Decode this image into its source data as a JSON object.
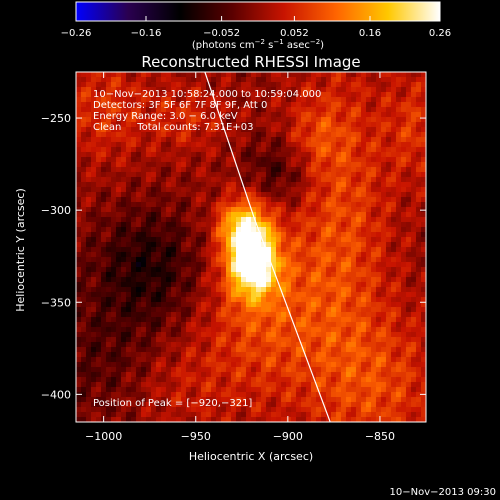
{
  "chart_data": {
    "type": "heatmap",
    "title": "Reconstructed RHESSI Image",
    "xlabel": "Heliocentric X (arcsec)",
    "ylabel": "Heliocentric Y (arcsec)",
    "xlim": [
      -1015,
      -825
    ],
    "ylim": [
      -415,
      -225
    ],
    "x_ticks": [
      {
        "value": -1000,
        "label": "−1000"
      },
      {
        "value": -950,
        "label": "−950"
      },
      {
        "value": -900,
        "label": "−900"
      },
      {
        "value": -850,
        "label": "−850"
      }
    ],
    "y_ticks": [
      {
        "value": -250,
        "label": "−250"
      },
      {
        "value": -300,
        "label": "−300"
      },
      {
        "value": -350,
        "label": "−350"
      },
      {
        "value": -400,
        "label": "−400"
      }
    ],
    "colorbar": {
      "min": -0.26,
      "max": 0.26,
      "ticks": [
        {
          "value": -0.26,
          "label": "−0.26"
        },
        {
          "value": -0.16,
          "label": "−0.16"
        },
        {
          "value": -0.052,
          "label": "−0.052"
        },
        {
          "value": 0.052,
          "label": "0.052"
        },
        {
          "value": 0.16,
          "label": "0.16"
        },
        {
          "value": 0.26,
          "label": "0.26"
        }
      ],
      "units_text": "(photons cm",
      "units_exp1": "−2",
      "units_mid": " s",
      "units_exp2": "−1",
      "units_end": " asec",
      "units_exp3": "−2",
      "units_close": ")",
      "colors": [
        "#0000ff",
        "#2a0050",
        "#000000",
        "#5a0000",
        "#c81400",
        "#ff6400",
        "#ffc800",
        "#ffffff"
      ]
    },
    "info_lines": [
      "10−Nov−2013 10:58:24.000 to 10:59:04.000",
      "Detectors: 3F 5F 6F 7F 8F 9F, Att 0",
      "Energy Range: 3.0 − 6.0 keV",
      "Clean     Total counts: 7.31E+03"
    ],
    "peak_label": "Position of Peak = [−920,−321]",
    "peak": {
      "x": -920,
      "y": -321,
      "value": 0.26
    },
    "limb_line": [
      {
        "x": -945,
        "y": -225
      },
      {
        "x": -918,
        "y": -305
      },
      {
        "x": -877,
        "y": -415
      }
    ],
    "sources": [
      {
        "x": -921,
        "y": -320,
        "sx": 9,
        "sy": 16,
        "amp": 0.27
      },
      {
        "x": -915,
        "y": -332,
        "sx": 8,
        "sy": 10,
        "amp": 0.1
      },
      {
        "x": -930,
        "y": -307,
        "sx": 7,
        "sy": 7,
        "amp": 0.06
      },
      {
        "x": -912,
        "y": -355,
        "sx": 25,
        "sy": 35,
        "amp": 0.085
      },
      {
        "x": -870,
        "y": -305,
        "sx": 18,
        "sy": 60,
        "amp": 0.075
      },
      {
        "x": -850,
        "y": -395,
        "sx": 25,
        "sy": 28,
        "amp": 0.07
      },
      {
        "x": -1000,
        "y": -245,
        "sx": 18,
        "sy": 20,
        "amp": 0.06
      },
      {
        "x": -955,
        "y": -250,
        "sx": 14,
        "sy": 12,
        "amp": 0.05
      },
      {
        "x": -885,
        "y": -260,
        "sx": 12,
        "sy": 14,
        "amp": 0.05
      },
      {
        "x": -975,
        "y": -330,
        "sx": 22,
        "sy": 22,
        "amp": -0.085
      },
      {
        "x": -905,
        "y": -280,
        "sx": 14,
        "sy": 14,
        "amp": -0.07
      },
      {
        "x": -1000,
        "y": -380,
        "sx": 25,
        "sy": 25,
        "amp": -0.045
      },
      {
        "x": -960,
        "y": -395,
        "sx": 20,
        "sy": 18,
        "amp": 0.035
      },
      {
        "x": -830,
        "y": -255,
        "sx": 12,
        "sy": 20,
        "amp": 0.06
      }
    ],
    "grid": false
  },
  "timestamp": "10−Nov−2013 09:30"
}
